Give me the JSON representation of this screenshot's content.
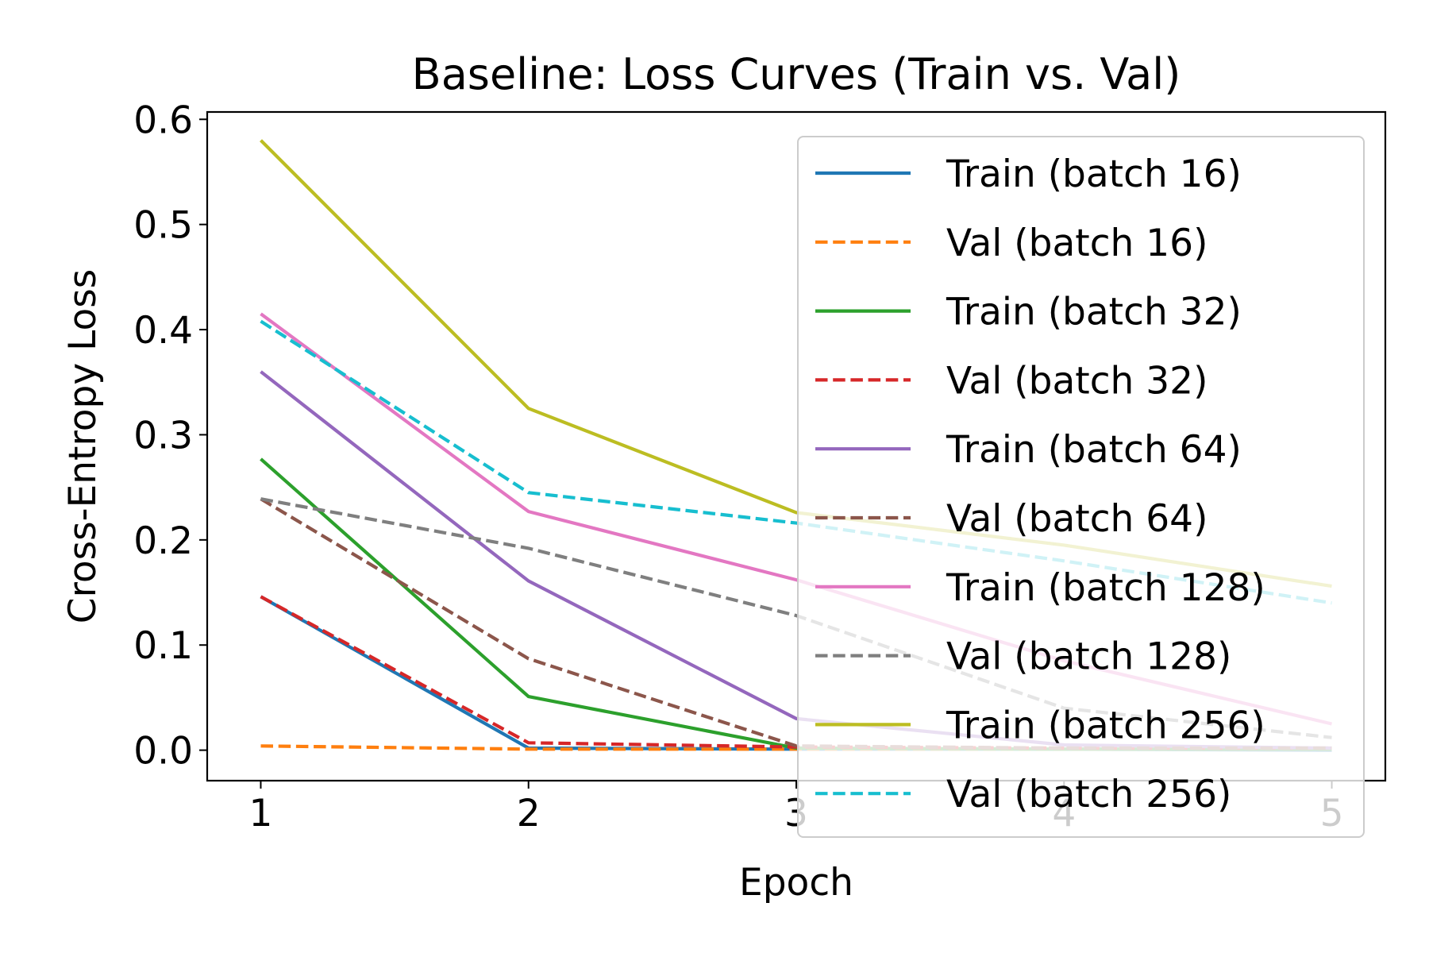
{
  "chart_data": {
    "type": "line",
    "title": "Baseline: Loss Curves (Train vs. Val)",
    "xlabel": "Epoch",
    "ylabel": "Cross-Entropy Loss",
    "x": [
      1,
      2,
      3,
      4,
      5
    ],
    "xlim": [
      0.8,
      5.2
    ],
    "ylim": [
      -0.029,
      0.607
    ],
    "xticks": [
      "1",
      "2",
      "3",
      "4",
      "5"
    ],
    "yticks": [
      "0.0",
      "0.1",
      "0.2",
      "0.3",
      "0.4",
      "0.5",
      "0.6"
    ],
    "grid": false,
    "legend_position": "upper right",
    "series": [
      {
        "name": "Train (batch 16)",
        "values": [
          0.146,
          0.002,
          0.001,
          0.001,
          0.0
        ],
        "color": "#1f77b4",
        "dashed": false
      },
      {
        "name": "Val (batch 16)",
        "values": [
          0.004,
          0.001,
          0.001,
          0.001,
          0.001
        ],
        "color": "#ff7f0e",
        "dashed": true
      },
      {
        "name": "Train (batch 32)",
        "values": [
          0.277,
          0.051,
          0.002,
          0.001,
          0.001
        ],
        "color": "#2ca02c",
        "dashed": false
      },
      {
        "name": "Val (batch 32)",
        "values": [
          0.146,
          0.007,
          0.003,
          0.002,
          0.002
        ],
        "color": "#d62728",
        "dashed": true
      },
      {
        "name": "Train (batch 64)",
        "values": [
          0.36,
          0.161,
          0.03,
          0.005,
          0.002
        ],
        "color": "#9467bd",
        "dashed": false
      },
      {
        "name": "Val (batch 64)",
        "values": [
          0.239,
          0.087,
          0.004,
          0.002,
          0.002
        ],
        "color": "#8c564b",
        "dashed": true
      },
      {
        "name": "Train (batch 128)",
        "values": [
          0.415,
          0.227,
          0.162,
          0.085,
          0.025
        ],
        "color": "#e377c2",
        "dashed": false
      },
      {
        "name": "Val (batch 128)",
        "values": [
          0.239,
          0.192,
          0.128,
          0.04,
          0.012
        ],
        "color": "#7f7f7f",
        "dashed": true
      },
      {
        "name": "Train (batch 256)",
        "values": [
          0.58,
          0.325,
          0.226,
          0.195,
          0.156
        ],
        "color": "#bcbd22",
        "dashed": false
      },
      {
        "name": "Val (batch 256)",
        "values": [
          0.408,
          0.245,
          0.216,
          0.18,
          0.14
        ],
        "color": "#17becf",
        "dashed": true
      }
    ]
  }
}
